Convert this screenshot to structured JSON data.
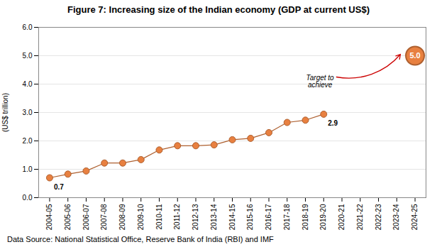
{
  "chart_data": {
    "type": "line",
    "title": "Figure 7: Increasing size of the Indian economy (GDP at current US$)",
    "ylabel": "(US$ trillion)",
    "source": "Data Source: National Statistical Office, Reserve Bank of India (RBI) and IMF",
    "categories": [
      "2004-05",
      "2005-06",
      "2006-07",
      "2007-08",
      "2008-09",
      "2009-10",
      "2010-11",
      "2011-12",
      "2012-13",
      "2013-14",
      "2014-15",
      "2015-16",
      "2016-17",
      "2017-18",
      "2018-19",
      "2019-20",
      "2020-21",
      "2021-22",
      "2022-23",
      "2023-24",
      "2024-25"
    ],
    "values": [
      0.7,
      0.83,
      0.94,
      1.22,
      1.22,
      1.34,
      1.68,
      1.83,
      1.83,
      1.86,
      2.04,
      2.09,
      2.29,
      2.65,
      2.73,
      2.94,
      null,
      null,
      null,
      null,
      5.0
    ],
    "value_labels": [
      "0.7",
      null,
      null,
      null,
      null,
      null,
      null,
      null,
      null,
      null,
      null,
      null,
      null,
      null,
      null,
      "2.9",
      null,
      null,
      null,
      null,
      "5.0"
    ],
    "color": "#E88040",
    "marker": "circle",
    "ylim": [
      0.0,
      6.0
    ],
    "yticks": [
      {
        "value": 0.0,
        "label": "0.0"
      },
      {
        "value": 1.0,
        "label": "1.0"
      },
      {
        "value": 2.0,
        "label": "2.0"
      },
      {
        "value": 3.0,
        "label": "3.0"
      },
      {
        "value": 4.0,
        "label": "4.0"
      },
      {
        "value": 5.0,
        "label": "5.0"
      },
      {
        "value": 6.0,
        "label": "6.0"
      }
    ],
    "grid": true,
    "annotations": [
      {
        "text": "Target to\nachieve",
        "x": "2024-25",
        "y": 5.0,
        "color": "#CC0000"
      }
    ]
  }
}
